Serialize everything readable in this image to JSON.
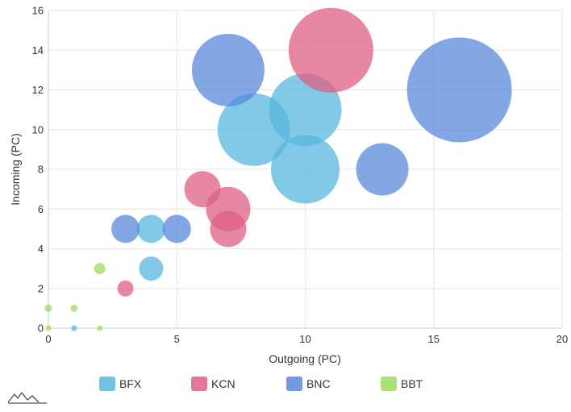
{
  "chart_data": {
    "type": "scatter",
    "bubble": true,
    "xlabel": "Outgoing (PC)",
    "ylabel": "Incoming (PC)",
    "xlim": [
      0,
      20
    ],
    "ylim": [
      0,
      16
    ],
    "xticks": [
      "0",
      "5",
      "10",
      "15",
      "20"
    ],
    "yticks": [
      "0",
      "2",
      "4",
      "6",
      "8",
      "10",
      "12",
      "14",
      "16"
    ],
    "grid": true,
    "legend_position": "bottom",
    "series": [
      {
        "name": "BFX",
        "color": "#57b7dd",
        "points": [
          {
            "x": 1,
            "y": 0,
            "size": 0.5
          },
          {
            "x": 4,
            "y": 3,
            "size": 3
          },
          {
            "x": 4,
            "y": 5,
            "size": 3.5
          },
          {
            "x": 8,
            "y": 10,
            "size": 9
          },
          {
            "x": 10,
            "y": 8,
            "size": 8.5
          },
          {
            "x": 10,
            "y": 11,
            "size": 9
          }
        ]
      },
      {
        "name": "KCN",
        "color": "#df5f83",
        "points": [
          {
            "x": 3,
            "y": 2,
            "size": 2
          },
          {
            "x": 6,
            "y": 7,
            "size": 4.5
          },
          {
            "x": 7,
            "y": 5,
            "size": 4.5
          },
          {
            "x": 7,
            "y": 6,
            "size": 5.5
          },
          {
            "x": 11,
            "y": 14,
            "size": 10.5
          }
        ]
      },
      {
        "name": "BNC",
        "color": "#5a88dc",
        "points": [
          {
            "x": 3,
            "y": 5,
            "size": 3.5
          },
          {
            "x": 5,
            "y": 5,
            "size": 3.5
          },
          {
            "x": 7,
            "y": 13,
            "size": 9
          },
          {
            "x": 13,
            "y": 8,
            "size": 6.5
          },
          {
            "x": 16,
            "y": 12,
            "size": 13
          }
        ]
      },
      {
        "name": "BBT",
        "color": "#9ddc5e",
        "points": [
          {
            "x": 0,
            "y": 0,
            "size": 0.6
          },
          {
            "x": 0,
            "y": 1,
            "size": 0.9
          },
          {
            "x": 1,
            "y": 1,
            "size": 0.9
          },
          {
            "x": 2,
            "y": 0,
            "size": 0.6
          },
          {
            "x": 2,
            "y": 3,
            "size": 1.4
          }
        ]
      }
    ]
  },
  "logo": {
    "icon": "mountain-logo-icon",
    "color": "#555555"
  }
}
